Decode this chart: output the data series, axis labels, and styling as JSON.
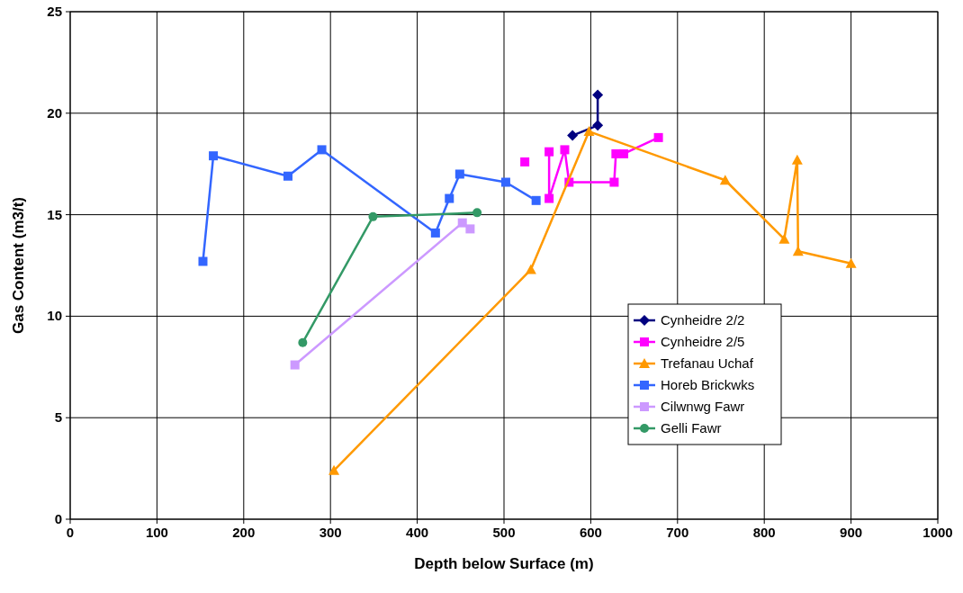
{
  "chart_data": {
    "type": "line",
    "xlabel": "Depth below Surface (m)",
    "ylabel": "Gas Content (m3/t)",
    "xlim": [
      0,
      1000
    ],
    "xticks": [
      0,
      100,
      200,
      300,
      400,
      500,
      600,
      700,
      800,
      900,
      1000
    ],
    "ylim": [
      0,
      25
    ],
    "yticks": [
      0,
      5,
      10,
      15,
      20,
      25
    ],
    "grid": true,
    "legend": "right",
    "series": [
      {
        "name": "Cynheidre 2/2",
        "color": "#000080",
        "marker": "diamond",
        "x": [
          579,
          608,
          608
        ],
        "values": [
          18.9,
          19.4,
          20.9
        ]
      },
      {
        "name": "Cynheidre 2/5",
        "color": "#ff00ff",
        "marker": "square",
        "x": [
          524,
          538,
          552,
          552,
          570,
          575,
          627,
          629,
          638,
          678
        ],
        "values": [
          17.6,
          null,
          18.1,
          15.8,
          18.2,
          16.6,
          16.6,
          18.0,
          18.0,
          18.8
        ]
      },
      {
        "name": "Trefanau Uchaf",
        "color": "#ff9900",
        "marker": "triangle",
        "x": [
          304,
          531,
          598,
          755,
          823,
          838,
          839,
          900
        ],
        "values": [
          2.4,
          12.3,
          19.1,
          16.7,
          13.8,
          17.7,
          13.2,
          12.6
        ]
      },
      {
        "name": "Horeb Brickwks",
        "color": "#3366ff",
        "marker": "square",
        "x": [
          153,
          165,
          251,
          290,
          421,
          437,
          449,
          502,
          537
        ],
        "values": [
          12.7,
          17.9,
          16.9,
          18.2,
          14.1,
          15.8,
          17.0,
          16.6,
          15.7
        ]
      },
      {
        "name": "Cilwnwg Fawr",
        "color": "#cc99ff",
        "marker": "square",
        "x": [
          259,
          452,
          461
        ],
        "values": [
          7.6,
          14.6,
          14.3
        ]
      },
      {
        "name": "Gelli Fawr",
        "color": "#339966",
        "marker": "circle",
        "x": [
          268,
          349,
          469
        ],
        "values": [
          8.7,
          14.9,
          15.1
        ]
      }
    ]
  }
}
